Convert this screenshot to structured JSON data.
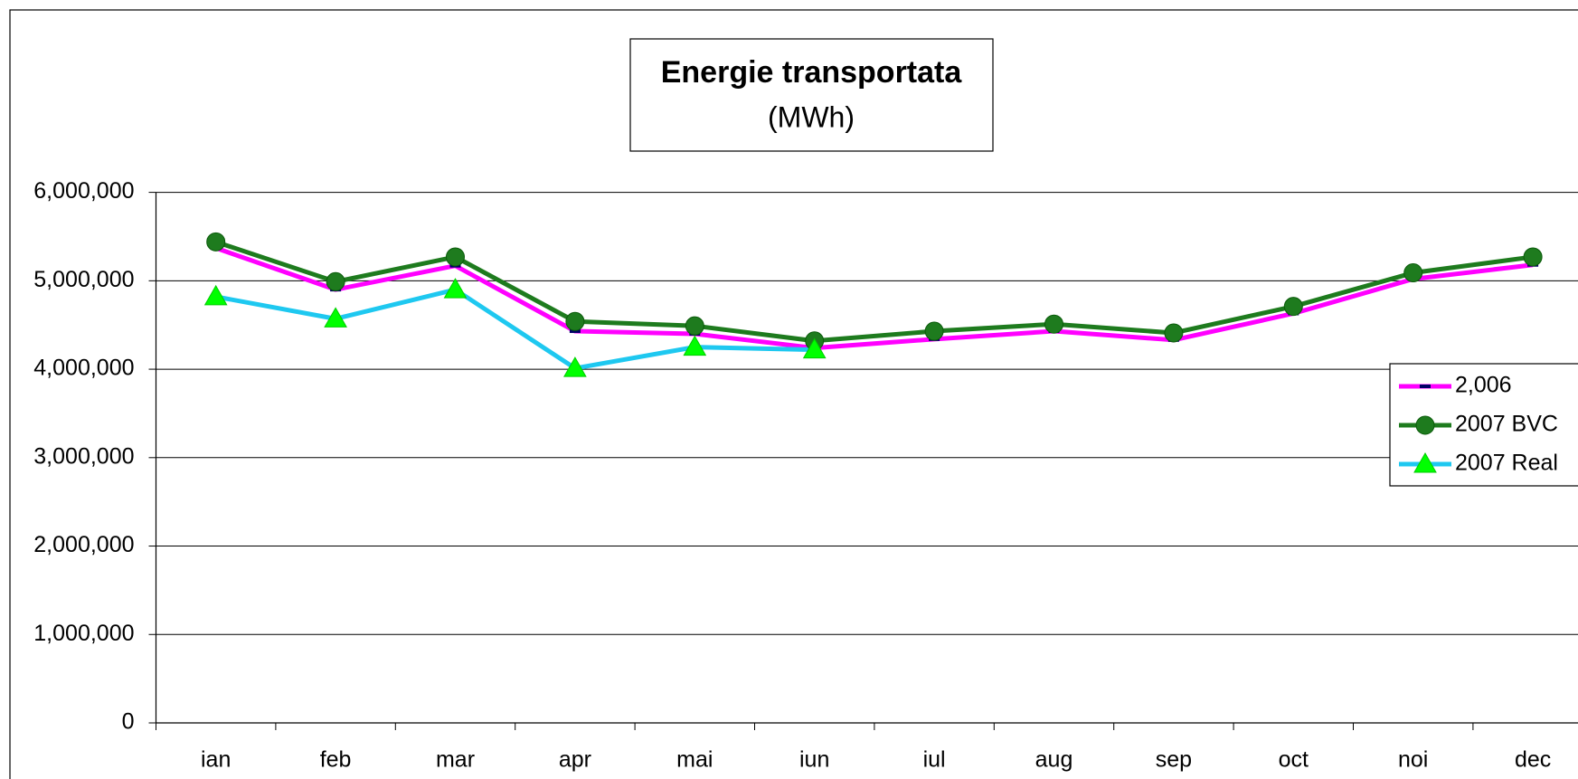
{
  "chart_data": {
    "type": "line",
    "title": "Energie transportata",
    "subtitle": "(MWh)",
    "categories": [
      "ian",
      "feb",
      "mar",
      "apr",
      "mai",
      "iun",
      "iul",
      "aug",
      "sep",
      "oct",
      "noi",
      "dec"
    ],
    "series": [
      {
        "name": "2,006",
        "color": "#ff00ff",
        "marker": "dash",
        "values": [
          5370000,
          4900000,
          5170000,
          4430000,
          4400000,
          4240000,
          4340000,
          4430000,
          4330000,
          4630000,
          5020000,
          5180000
        ]
      },
      {
        "name": "2007 BVC",
        "color": "#1e7b1e",
        "marker": "circle",
        "values": [
          5440000,
          4990000,
          5270000,
          4540000,
          4490000,
          4320000,
          4430000,
          4510000,
          4410000,
          4710000,
          5090000,
          5270000
        ]
      },
      {
        "name": "2007 Real",
        "color": "#1ec8f0",
        "marker": "triangle",
        "values": [
          4820000,
          4570000,
          4900000,
          4010000,
          4250000,
          4220000,
          null,
          null,
          null,
          null,
          null,
          null
        ]
      }
    ],
    "ylim": [
      0,
      6000000
    ],
    "yticks": [
      {
        "value": 0,
        "label": "0"
      },
      {
        "value": 1000000,
        "label": "1,000,000"
      },
      {
        "value": 2000000,
        "label": "2,000,000"
      },
      {
        "value": 3000000,
        "label": "3,000,000"
      },
      {
        "value": 4000000,
        "label": "4,000,000"
      },
      {
        "value": 5000000,
        "label": "5,000,000"
      },
      {
        "value": 6000000,
        "label": "6,000,000"
      }
    ],
    "grid": true,
    "legend": "right"
  }
}
